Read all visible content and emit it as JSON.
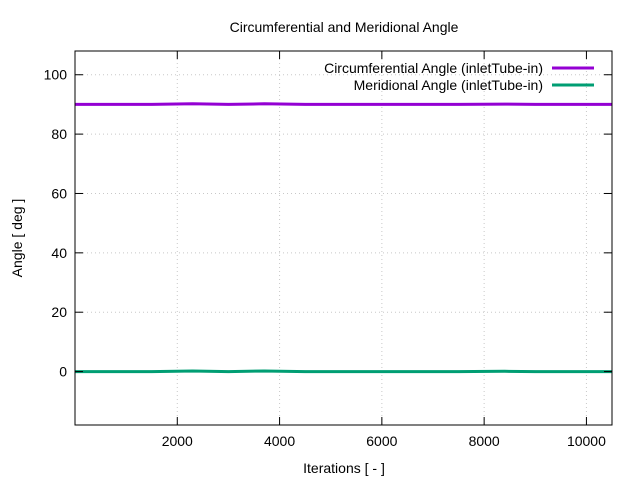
{
  "chart_data": {
    "type": "line",
    "title": "Circumferential and Meridional Angle",
    "xlabel": "Iterations [ - ]",
    "ylabel": "Angle [ deg ]",
    "xlim": [
      0,
      10500
    ],
    "ylim": [
      -18,
      108
    ],
    "xticks": [
      2000,
      4000,
      6000,
      8000,
      10000
    ],
    "yticks": [
      0,
      20,
      40,
      60,
      80,
      100
    ],
    "grid": true,
    "legend_position": "top-right",
    "series": [
      {
        "name": "Circumferential Angle (inletTube-in)",
        "color": "#9400d3",
        "x": [
          0,
          1500,
          2300,
          3000,
          3700,
          4500,
          6000,
          7500,
          8400,
          9000,
          10500
        ],
        "y": [
          90,
          90,
          90.2,
          90,
          90.2,
          90,
          90,
          90,
          90.1,
          90,
          90
        ]
      },
      {
        "name": "Meridional Angle (inletTube-in)",
        "color": "#009e73",
        "x": [
          0,
          1500,
          2300,
          3000,
          3700,
          4500,
          6000,
          7500,
          8400,
          9000,
          10500
        ],
        "y": [
          0,
          0,
          0.2,
          0,
          0.2,
          0,
          0,
          0,
          0.1,
          0,
          0
        ]
      }
    ]
  }
}
